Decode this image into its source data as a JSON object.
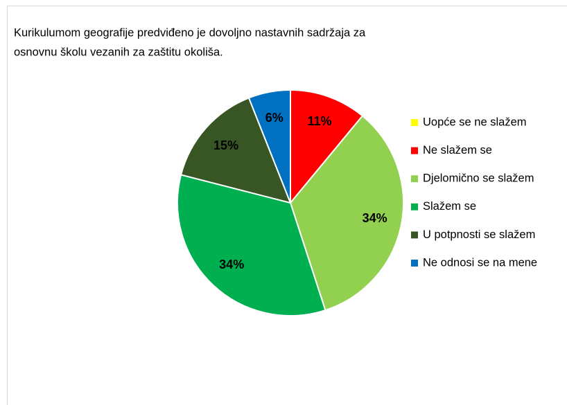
{
  "chart_data": {
    "type": "pie",
    "title": [
      "Kurikulumom geografije predviđeno je dovoljno nastavnih sadržaja za",
      "osnovnu školu vezanih za zaštitu okoliša."
    ],
    "categories": [
      "Uopće se ne slažem",
      "Ne slažem se",
      "Djelomično se slažem",
      "Slažem se",
      "U potpnosti se slažem",
      "Ne odnosi se na mene"
    ],
    "values": [
      0,
      11,
      34,
      34,
      15,
      6
    ],
    "value_labels": [
      null,
      "11%",
      "34%",
      "34%",
      "15%",
      "6%"
    ],
    "colors": [
      "#ffff00",
      "#ff0000",
      "#92d050",
      "#00b050",
      "#375623",
      "#0070c0"
    ],
    "legend": "right"
  }
}
